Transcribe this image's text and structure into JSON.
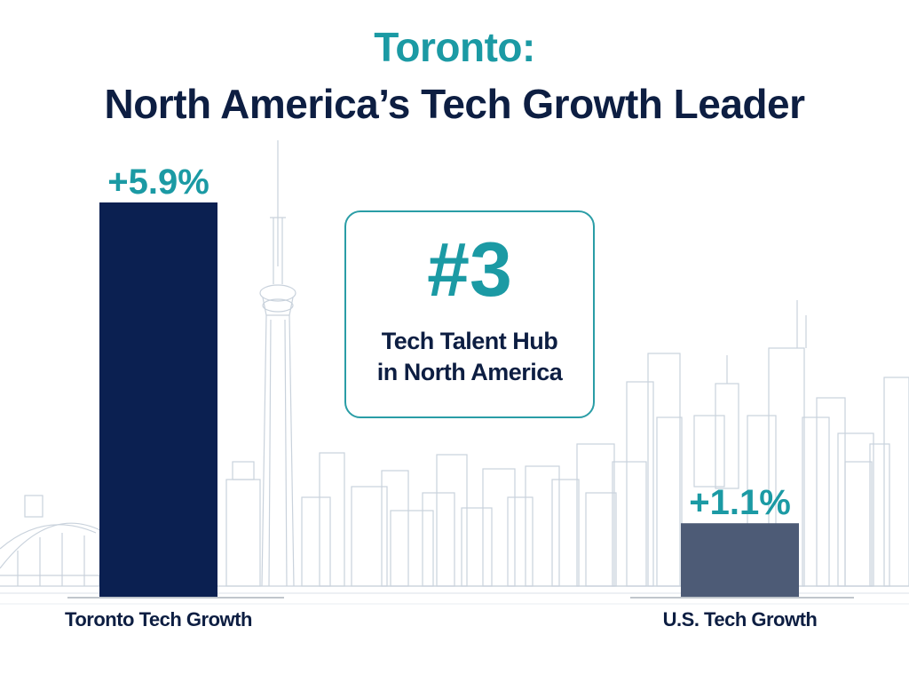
{
  "title": {
    "line1": "Toronto:",
    "line2": "North America’s Tech Growth Leader"
  },
  "callout": {
    "rank": "#3",
    "line1": "Tech Talent Hub",
    "line2": "in North America"
  },
  "colors": {
    "teal": "#1b9aa4",
    "navy": "#0d1e42",
    "toronto_bar": "#0b2051",
    "us_bar": "#4d5b76",
    "skyline": "#c9d2dc"
  },
  "chart_data": {
    "type": "bar",
    "categories": [
      "Toronto Tech Growth",
      "U.S. Tech Growth"
    ],
    "values": [
      5.9,
      1.1
    ],
    "value_labels": [
      "+5.9%",
      "+1.1%"
    ],
    "title": "Toronto: North America’s Tech Growth Leader",
    "xlabel": "",
    "ylabel": "",
    "ylim": [
      0,
      5.9
    ],
    "grid": false,
    "legend": "none"
  }
}
